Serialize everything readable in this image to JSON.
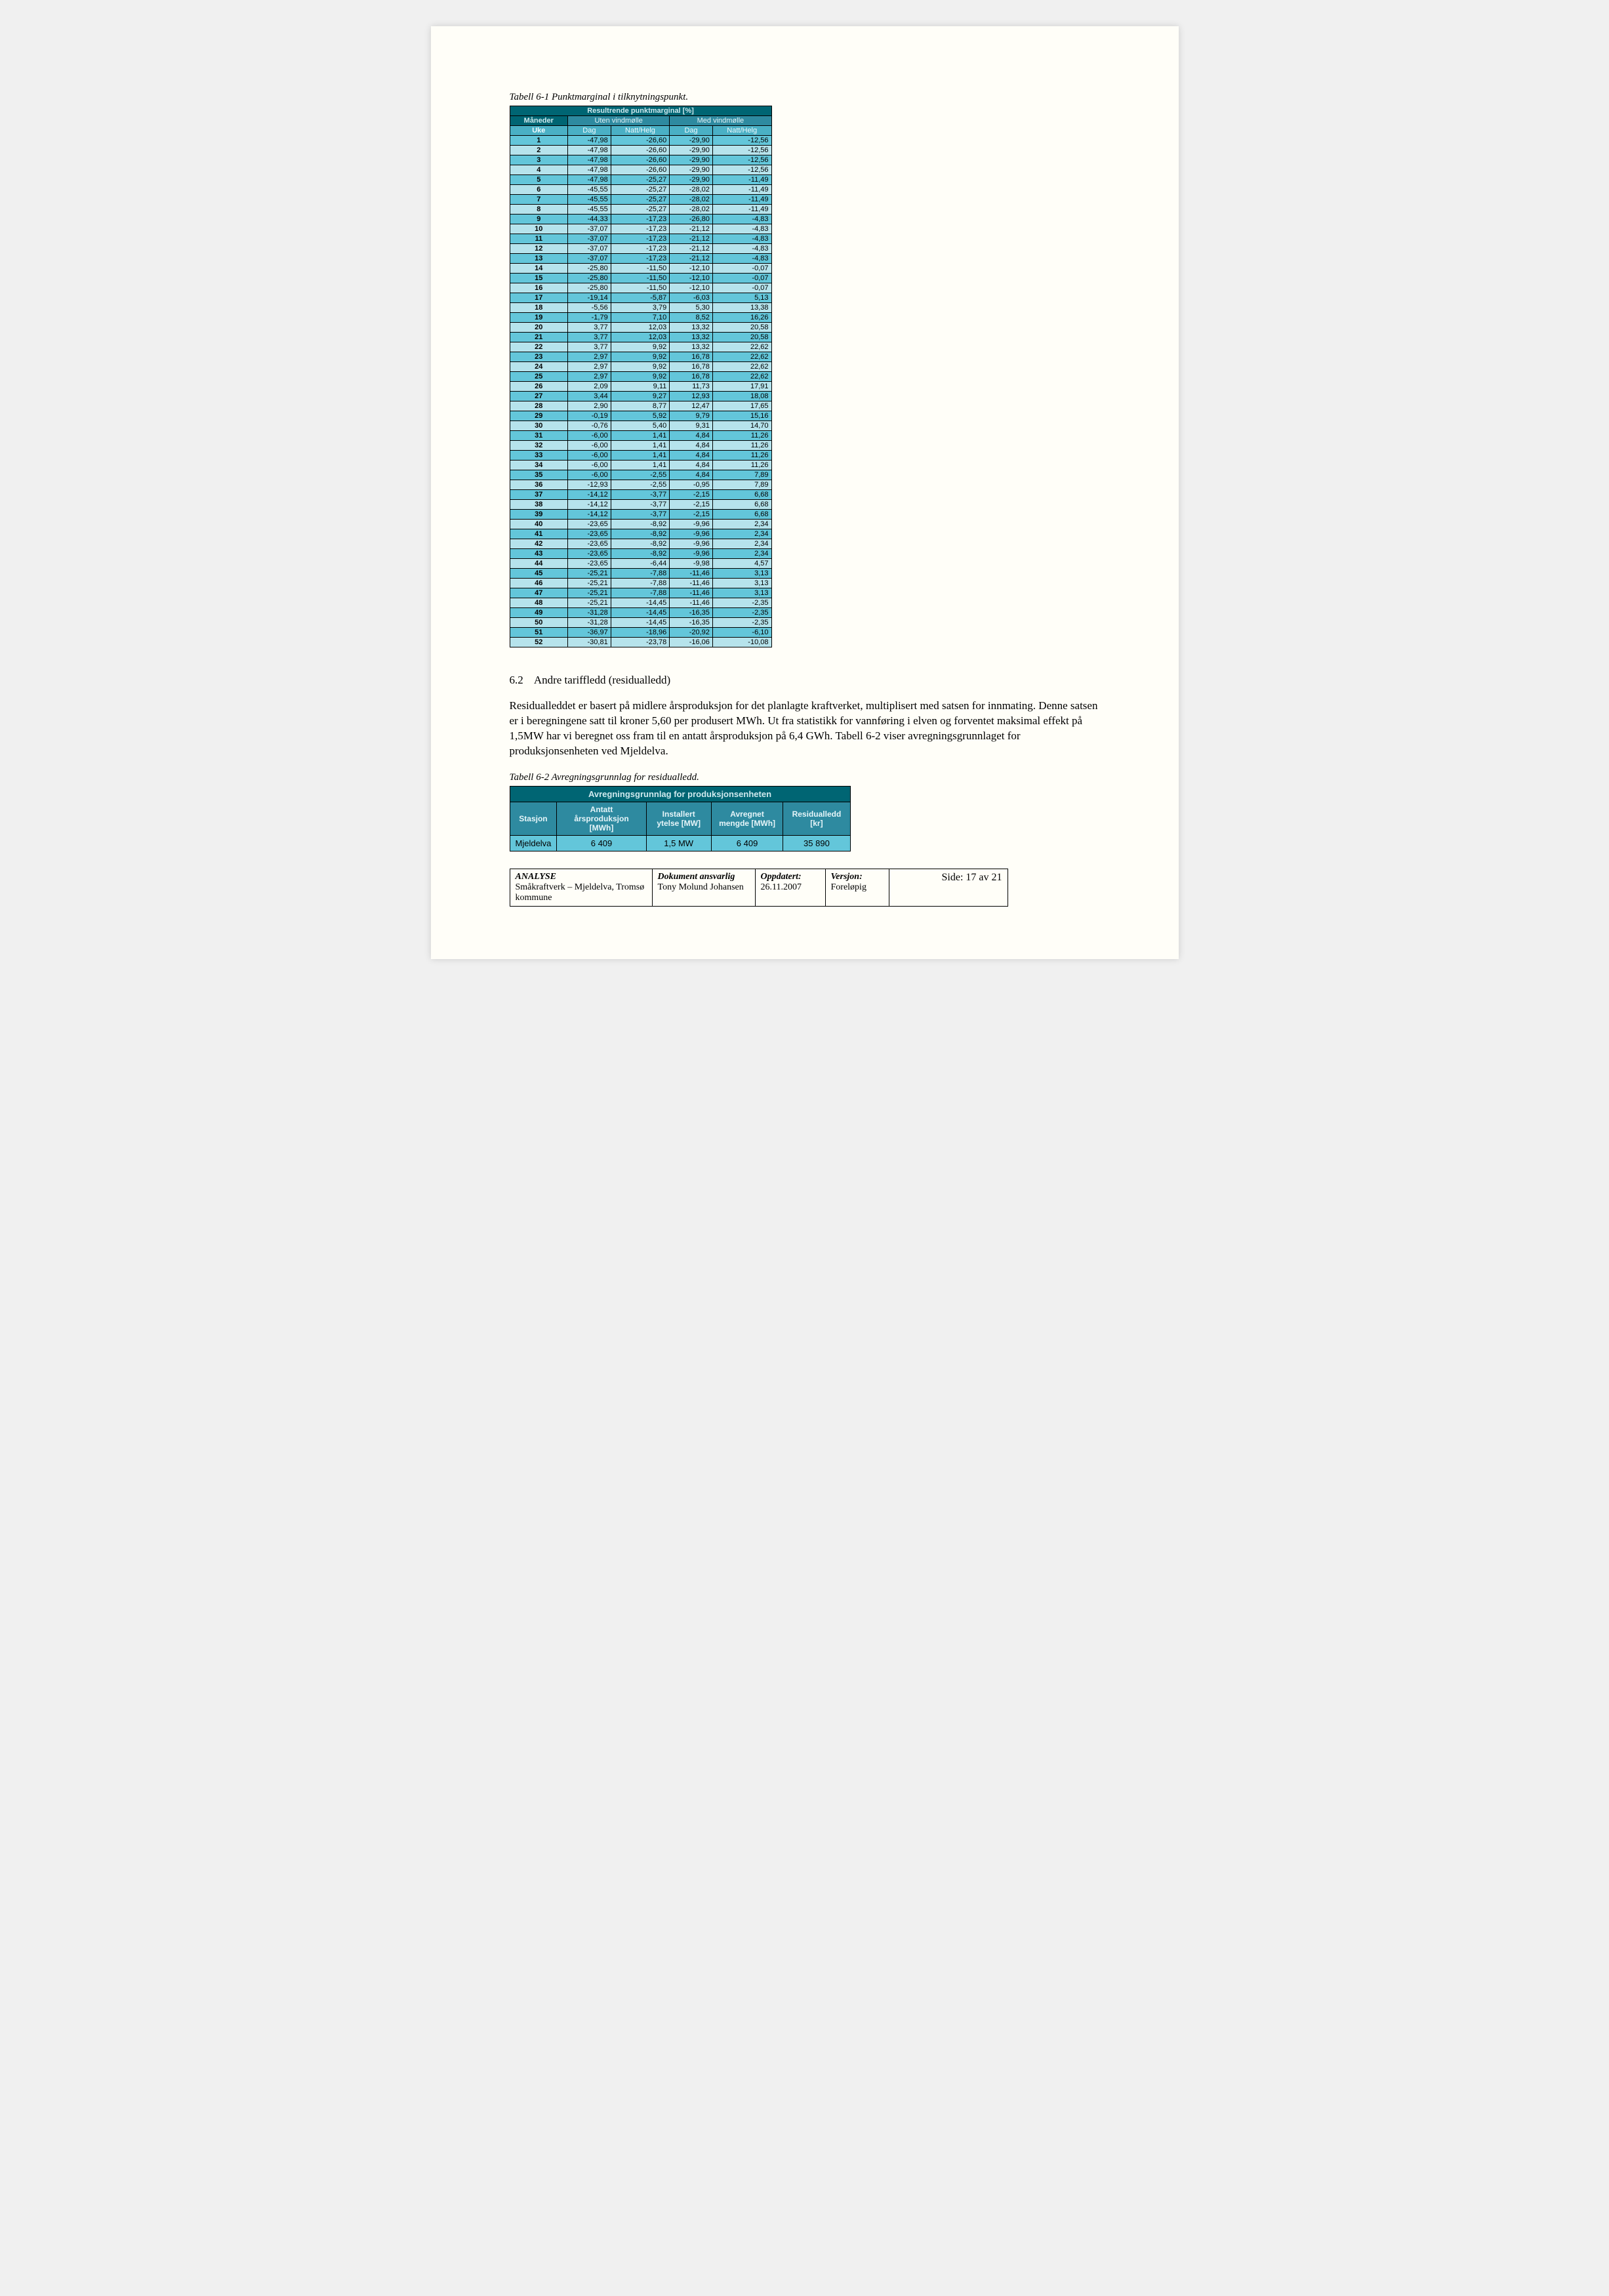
{
  "caption61": "Tabell 6-1 Punktmarginal i tilknytningspunkt.",
  "table61": {
    "title": "Resultrende punktmarginal [%]",
    "header_left": "Måneder",
    "header_group_a": "Uten vindmølle",
    "header_group_b": "Med vindmølle",
    "subhead_uke": "Uke",
    "sub_a1": "Dag",
    "sub_a2": "Natt/Helg",
    "sub_b1": "Dag",
    "sub_b2": "Natt/Helg",
    "rows": [
      [
        "1",
        "-47,98",
        "-26,60",
        "-29,90",
        "-12,56"
      ],
      [
        "2",
        "-47,98",
        "-26,60",
        "-29,90",
        "-12,56"
      ],
      [
        "3",
        "-47,98",
        "-26,60",
        "-29,90",
        "-12,56"
      ],
      [
        "4",
        "-47,98",
        "-26,60",
        "-29,90",
        "-12,56"
      ],
      [
        "5",
        "-47,98",
        "-25,27",
        "-29,90",
        "-11,49"
      ],
      [
        "6",
        "-45,55",
        "-25,27",
        "-28,02",
        "-11,49"
      ],
      [
        "7",
        "-45,55",
        "-25,27",
        "-28,02",
        "-11,49"
      ],
      [
        "8",
        "-45,55",
        "-25,27",
        "-28,02",
        "-11,49"
      ],
      [
        "9",
        "-44,33",
        "-17,23",
        "-26,80",
        "-4,83"
      ],
      [
        "10",
        "-37,07",
        "-17,23",
        "-21,12",
        "-4,83"
      ],
      [
        "11",
        "-37,07",
        "-17,23",
        "-21,12",
        "-4,83"
      ],
      [
        "12",
        "-37,07",
        "-17,23",
        "-21,12",
        "-4,83"
      ],
      [
        "13",
        "-37,07",
        "-17,23",
        "-21,12",
        "-4,83"
      ],
      [
        "14",
        "-25,80",
        "-11,50",
        "-12,10",
        "-0,07"
      ],
      [
        "15",
        "-25,80",
        "-11,50",
        "-12,10",
        "-0,07"
      ],
      [
        "16",
        "-25,80",
        "-11,50",
        "-12,10",
        "-0,07"
      ],
      [
        "17",
        "-19,14",
        "-5,87",
        "-6,03",
        "5,13"
      ],
      [
        "18",
        "-5,56",
        "3,79",
        "5,30",
        "13,38"
      ],
      [
        "19",
        "-1,79",
        "7,10",
        "8,52",
        "16,26"
      ],
      [
        "20",
        "3,77",
        "12,03",
        "13,32",
        "20,58"
      ],
      [
        "21",
        "3,77",
        "12,03",
        "13,32",
        "20,58"
      ],
      [
        "22",
        "3,77",
        "9,92",
        "13,32",
        "22,62"
      ],
      [
        "23",
        "2,97",
        "9,92",
        "16,78",
        "22,62"
      ],
      [
        "24",
        "2,97",
        "9,92",
        "16,78",
        "22,62"
      ],
      [
        "25",
        "2,97",
        "9,92",
        "16,78",
        "22,62"
      ],
      [
        "26",
        "2,09",
        "9,11",
        "11,73",
        "17,91"
      ],
      [
        "27",
        "3,44",
        "9,27",
        "12,93",
        "18,08"
      ],
      [
        "28",
        "2,90",
        "8,77",
        "12,47",
        "17,65"
      ],
      [
        "29",
        "-0,19",
        "5,92",
        "9,79",
        "15,16"
      ],
      [
        "30",
        "-0,76",
        "5,40",
        "9,31",
        "14,70"
      ],
      [
        "31",
        "-6,00",
        "1,41",
        "4,84",
        "11,26"
      ],
      [
        "32",
        "-6,00",
        "1,41",
        "4,84",
        "11,26"
      ],
      [
        "33",
        "-6,00",
        "1,41",
        "4,84",
        "11,26"
      ],
      [
        "34",
        "-6,00",
        "1,41",
        "4,84",
        "11,26"
      ],
      [
        "35",
        "-6,00",
        "-2,55",
        "4,84",
        "7,89"
      ],
      [
        "36",
        "-12,93",
        "-2,55",
        "-0,95",
        "7,89"
      ],
      [
        "37",
        "-14,12",
        "-3,77",
        "-2,15",
        "6,68"
      ],
      [
        "38",
        "-14,12",
        "-3,77",
        "-2,15",
        "6,68"
      ],
      [
        "39",
        "-14,12",
        "-3,77",
        "-2,15",
        "6,68"
      ],
      [
        "40",
        "-23,65",
        "-8,92",
        "-9,96",
        "2,34"
      ],
      [
        "41",
        "-23,65",
        "-8,92",
        "-9,96",
        "2,34"
      ],
      [
        "42",
        "-23,65",
        "-8,92",
        "-9,96",
        "2,34"
      ],
      [
        "43",
        "-23,65",
        "-8,92",
        "-9,96",
        "2,34"
      ],
      [
        "44",
        "-23,65",
        "-6,44",
        "-9,98",
        "4,57"
      ],
      [
        "45",
        "-25,21",
        "-7,88",
        "-11,46",
        "3,13"
      ],
      [
        "46",
        "-25,21",
        "-7,88",
        "-11,46",
        "3,13"
      ],
      [
        "47",
        "-25,21",
        "-7,88",
        "-11,46",
        "3,13"
      ],
      [
        "48",
        "-25,21",
        "-14,45",
        "-11,46",
        "-2,35"
      ],
      [
        "49",
        "-31,28",
        "-14,45",
        "-16,35",
        "-2,35"
      ],
      [
        "50",
        "-31,28",
        "-14,45",
        "-16,35",
        "-2,35"
      ],
      [
        "51",
        "-36,97",
        "-18,96",
        "-20,92",
        "-6,10"
      ],
      [
        "52",
        "-30,81",
        "-23,78",
        "-16,06",
        "-10,08"
      ]
    ]
  },
  "section62_num": "6.2",
  "section62_title": "Andre tariffledd (residualledd)",
  "body62": "Residualleddet er basert på midlere årsproduksjon for det planlagte kraftverket, multiplisert med satsen for innmating. Denne satsen er i beregningene satt til kroner 5,60 per produsert MWh. Ut fra statistikk for vannføring i elven og forventet maksimal effekt på 1,5MW har vi beregnet oss fram til en antatt årsproduksjon på 6,4 GWh. Tabell 6-2 viser avregningsgrunnlaget for produksjonsenheten ved Mjeldelva.",
  "caption62": "Tabell 6-2 Avregningsgrunnlag for residualledd.",
  "table62": {
    "title": "Avregningsgrunnlag for produksjonsenheten",
    "cols": [
      "Stasjon",
      "Antatt årsproduksjon [MWh]",
      "Installert ytelse [MW]",
      "Avregnet mengde [MWh]",
      "Residualledd [kr]"
    ],
    "row": [
      "Mjeldelva",
      "6 409",
      "1,5 MW",
      "6 409",
      "35 890"
    ]
  },
  "footer": {
    "c1_label": "ANALYSE",
    "c1_text": "Småkraftverk – Mjeldelva, Tromsø kommune",
    "c2_label": "Dokument ansvarlig",
    "c2_text": "Tony Molund Johansen",
    "c3_label": "Oppdatert:",
    "c3_text": "26.11.2007",
    "c4_label": "Versjon:",
    "c4_text": "Foreløpig",
    "c5_text": "Side: 17 av 21"
  }
}
